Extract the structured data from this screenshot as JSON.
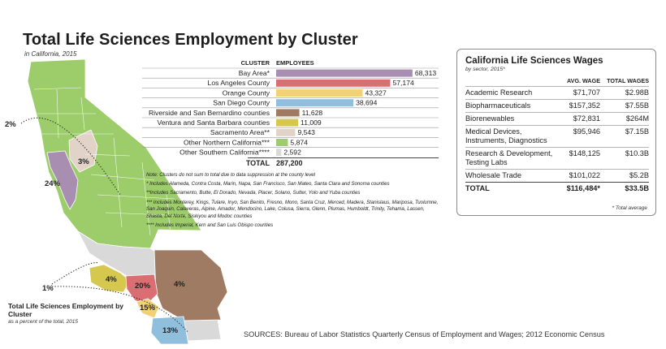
{
  "title": "Total Life Sciences Employment by Cluster",
  "subtitle": "in California, 2015",
  "chart_data": [
    {
      "type": "bar",
      "orientation": "horizontal",
      "title": "Total Life Sciences Employment by Cluster",
      "column_headers": {
        "cluster": "CLUSTER",
        "employees": "EMPLOYEES"
      },
      "categories": [
        "Bay Area*",
        "Los Angeles County",
        "Orange County",
        "San Diego County",
        "Riverside and San Bernardino counties",
        "Ventura and Santa Barbara counties",
        "Sacramento Area**",
        "Other Northern California***",
        "Other Southern California****"
      ],
      "values": [
        68313,
        57174,
        43327,
        38694,
        11628,
        11009,
        9543,
        5874,
        2592
      ],
      "value_labels": [
        "68,313",
        "57,174",
        "43,327",
        "38,694",
        "11,628",
        "11,009",
        "9,543",
        "5,874",
        "2,592"
      ],
      "colors": [
        "#a88fb2",
        "#db6e73",
        "#f1d173",
        "#8fbfdc",
        "#a07b63",
        "#d6c84f",
        "#e2d3c8",
        "#9ccd6a",
        "#d9d9d9"
      ],
      "xlim": [
        0,
        70000
      ],
      "total": {
        "label": "TOTAL",
        "value": "287,200"
      }
    },
    {
      "type": "map",
      "title": "Total Life Sciences Employment by Cluster",
      "subtitle": "as a percent of the total, 2015",
      "regions": [
        {
          "name": "Bay Area",
          "share": "24%",
          "color": "#a88fb2"
        },
        {
          "name": "Sacramento Area",
          "share": "3%",
          "color": "#e2d3c8"
        },
        {
          "name": "Other Northern California",
          "share": "2%",
          "color": "#9ccd6a"
        },
        {
          "name": "Other Southern California",
          "share": "1%",
          "color": "#d9d9d9"
        },
        {
          "name": "Ventura and Santa Barbara counties",
          "share": "4%",
          "color": "#d6c84f"
        },
        {
          "name": "Los Angeles County",
          "share": "20%",
          "color": "#db6e73"
        },
        {
          "name": "Riverside and San Bernardino counties",
          "share": "4%",
          "color": "#a07b63"
        },
        {
          "name": "Orange County",
          "share": "15%",
          "color": "#f1d173"
        },
        {
          "name": "San Diego County",
          "share": "13%",
          "color": "#8fbfdc"
        }
      ]
    }
  ],
  "notes": [
    "Note: Clusters do not sum to total due to data suppression at the county level",
    "* Includes Alameda, Contra Costa, Marin, Napa, San Francisco, San Mateo, Santa Clara and Sonoma counties",
    "**Includes Sacramento, Butte, El Dorado, Nevada, Placer, Solano, Sutter, Yolo and Yuba counties",
    "*** Includes Monterey, Kings, Tulare, Inyo, San Benito, Fresno, Mono, Santa Cruz, Merced, Madera, Stanislaus, Mariposa, Tuolumne, San Joaquin, Calaveras, Alpine, Amador, Mendocino, Lake, Colusa, Sierra, Glenn, Plumas, Humboldt, Trinity, Tehama, Lassen, Shasta, Del Norte, Siskiyou and Modoc counties",
    "**** Includes Imperial, Kern and  San Luis Obispo counties"
  ],
  "wages": {
    "title": "California Life Sciences Wages",
    "subtitle": "by sector, 2015*",
    "headers": [
      "",
      "AVG. WAGE",
      "TOTAL WAGES"
    ],
    "rows": [
      {
        "sector": "Academic Research",
        "avg": "$71,707",
        "total": "$2.98B"
      },
      {
        "sector": "Biopharmaceuticals",
        "avg": "$157,352",
        "total": "$7.55B"
      },
      {
        "sector": "Biorenewables",
        "avg": "$72,831",
        "total": "$264M"
      },
      {
        "sector": "Medical Devices, Instruments, Diagnostics",
        "avg": "$95,946",
        "total": "$7.15B"
      },
      {
        "sector": "Research & Development, Testing Labs",
        "avg": "$148,125",
        "total": "$10.3B"
      },
      {
        "sector": "Wholesale Trade",
        "avg": "$101,022",
        "total": "$5.2B"
      }
    ],
    "total_row": {
      "sector": "TOTAL",
      "avg": "$116,484*",
      "total": "$33.5B"
    },
    "note": "* Total average"
  },
  "sources": "SOURCES: Bureau of Labor Statistics Quarterly Census of Employment and Wages; 2012 Economic Census"
}
